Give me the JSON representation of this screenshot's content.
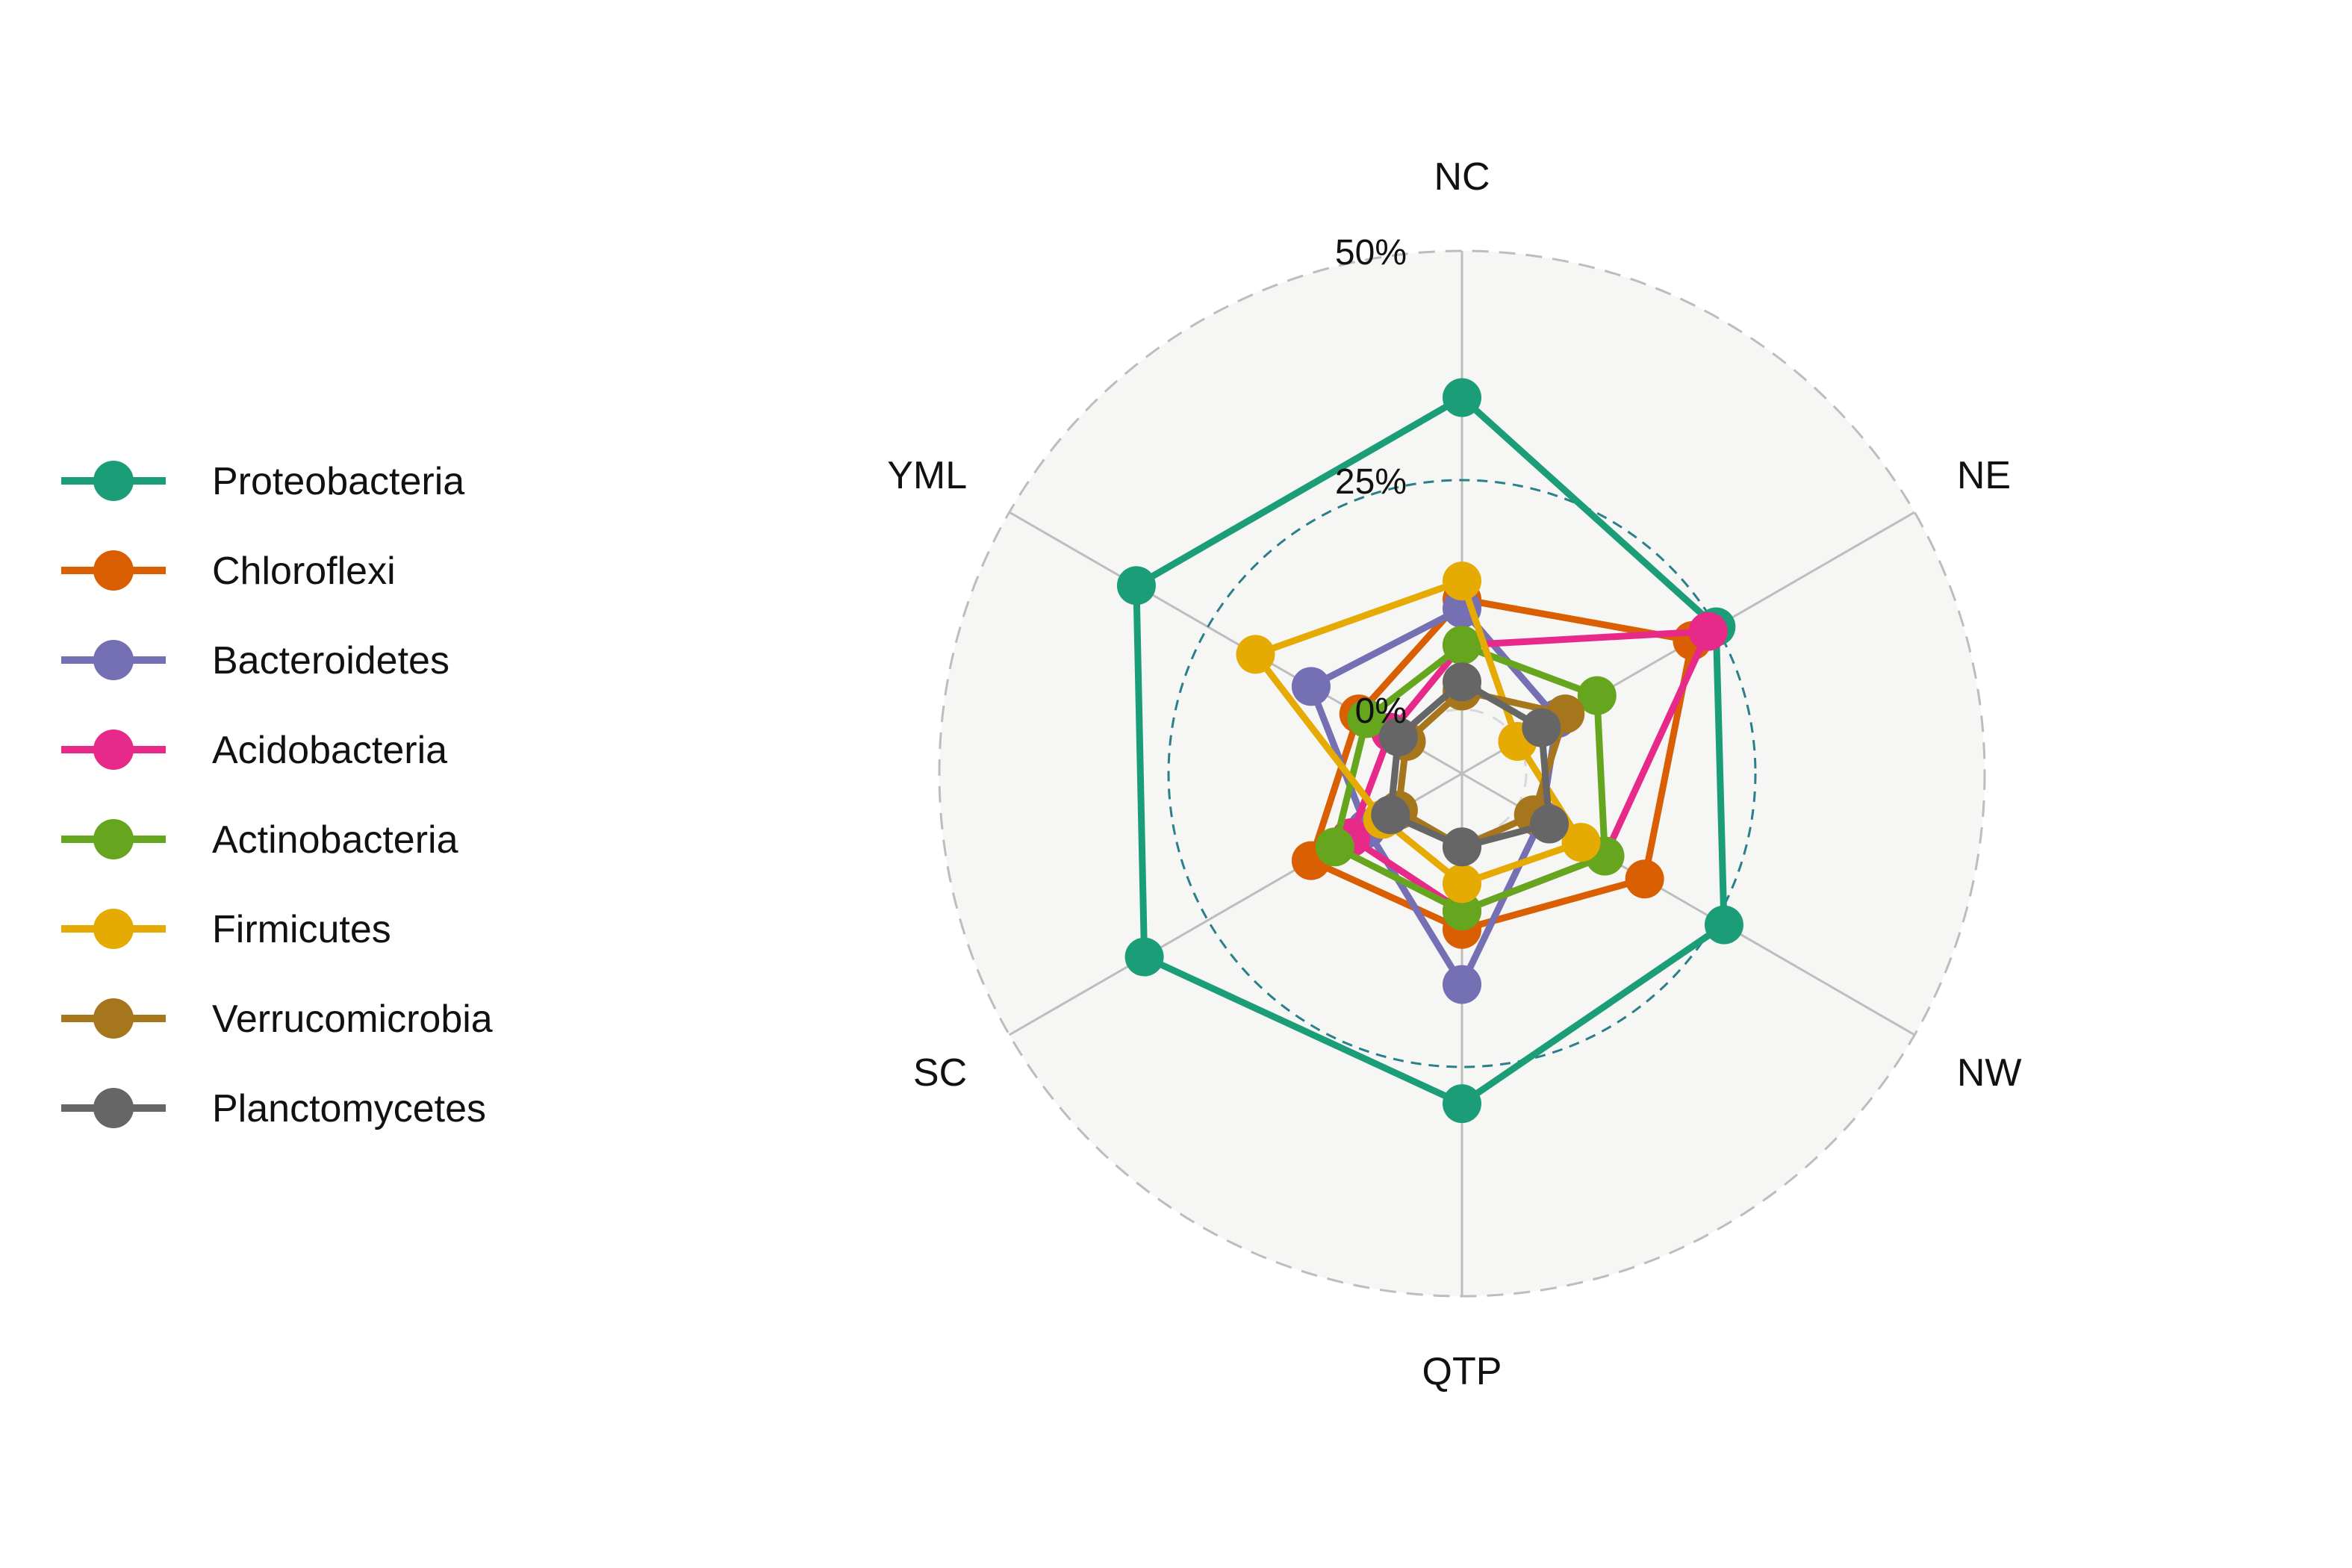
{
  "chart_data": {
    "type": "radar",
    "title": "",
    "axes": [
      "NC",
      "NE",
      "NW",
      "QTP",
      "SC",
      "YML"
    ],
    "radial_ticks": [
      "0%",
      "25%",
      "50%"
    ],
    "ylim": [
      -7,
      50
    ],
    "legend_position": "left",
    "series": [
      {
        "name": "Proteobacteria",
        "color": "#1b9e77",
        "values": [
          34,
          25,
          26,
          29,
          33,
          34
        ]
      },
      {
        "name": "Chloroflexi",
        "color": "#d95f02",
        "values": [
          12,
          22,
          16,
          10,
          12,
          6
        ]
      },
      {
        "name": "Bacteroidetes",
        "color": "#7570b3",
        "values": [
          11,
          5,
          3,
          16,
          5,
          12
        ]
      },
      {
        "name": "Acidobacteria",
        "color": "#e7298a",
        "values": [
          7,
          24,
          11,
          8,
          7,
          2
        ]
      },
      {
        "name": "Actinobacteria",
        "color": "#66a61e",
        "values": [
          7,
          10,
          11,
          8,
          9,
          5
        ]
      },
      {
        "name": "Firmicutes",
        "color": "#e6ab02",
        "values": [
          14,
          0,
          8,
          5,
          3,
          19
        ]
      },
      {
        "name": "Verrucomicrobia",
        "color": "#a6761d",
        "values": [
          2,
          6,
          2,
          1,
          1,
          0
        ]
      },
      {
        "name": "Planctomycetes",
        "color": "#666666",
        "values": [
          3,
          3,
          4,
          1,
          2,
          1
        ]
      }
    ]
  }
}
